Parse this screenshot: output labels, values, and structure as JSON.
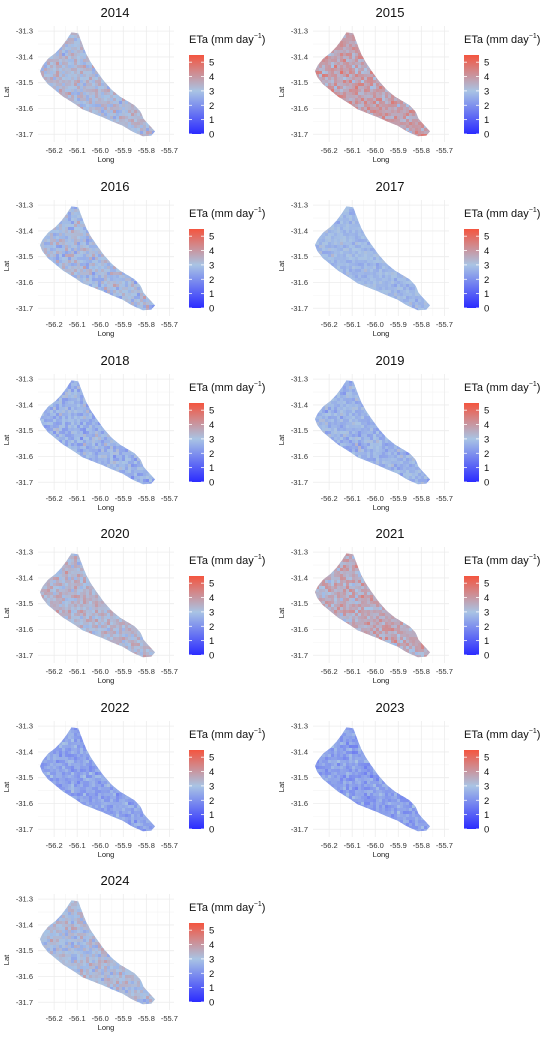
{
  "figure": {
    "legend_title": "ETa",
    "legend_units": "(mm day",
    "legend_units_sup": "−1",
    "legend_units_close": ")",
    "colors": {
      "low": "#2b2bff",
      "mid": "#a9c4e4",
      "high": "#f4553f",
      "grid": "#ececec",
      "panel_bg": "#ffffff"
    }
  },
  "chart_data": [
    {
      "type": "heatmap",
      "title": "2014",
      "xlabel": "Long",
      "ylabel": "Lat",
      "x_ticks": [
        "-56.2",
        "-56.1",
        "-56.0",
        "-55.9",
        "-55.8",
        "-55.7"
      ],
      "y_ticks": [
        "-31.3",
        "-31.4",
        "-31.5",
        "-31.6",
        "-31.7"
      ],
      "xlim": [
        -56.27,
        -55.68
      ],
      "ylim": [
        -31.73,
        -31.28
      ],
      "color_scale": {
        "min": 0,
        "max": 5.5,
        "ticks": [
          "0",
          "1",
          "2",
          "3",
          "4",
          "5"
        ]
      },
      "mean_eta": 3.2,
      "spread": 0.9
    },
    {
      "type": "heatmap",
      "title": "2015",
      "xlabel": "Long",
      "ylabel": "Lat",
      "x_ticks": [
        "-56.2",
        "-56.1",
        "-56.0",
        "-55.9",
        "-55.8",
        "-55.7"
      ],
      "y_ticks": [
        "-31.3",
        "-31.4",
        "-31.5",
        "-31.6",
        "-31.7"
      ],
      "xlim": [
        -56.27,
        -55.68
      ],
      "ylim": [
        -31.73,
        -31.28
      ],
      "color_scale": {
        "min": 0,
        "max": 5.5,
        "ticks": [
          "0",
          "1",
          "2",
          "3",
          "4",
          "5"
        ]
      },
      "mean_eta": 3.8,
      "spread": 1.0
    },
    {
      "type": "heatmap",
      "title": "2016",
      "xlabel": "Long",
      "ylabel": "Lat",
      "x_ticks": [
        "-56.2",
        "-56.1",
        "-56.0",
        "-55.9",
        "-55.8",
        "-55.7"
      ],
      "y_ticks": [
        "-31.3",
        "-31.4",
        "-31.5",
        "-31.6",
        "-31.7"
      ],
      "xlim": [
        -56.27,
        -55.68
      ],
      "ylim": [
        -31.73,
        -31.28
      ],
      "color_scale": {
        "min": 0,
        "max": 5.5,
        "ticks": [
          "0",
          "1",
          "2",
          "3",
          "4",
          "5"
        ]
      },
      "mean_eta": 3.0,
      "spread": 1.0
    },
    {
      "type": "heatmap",
      "title": "2017",
      "xlabel": "Long",
      "ylabel": "Lat",
      "x_ticks": [
        "-56.2",
        "-56.1",
        "-56.0",
        "-55.9",
        "-55.8",
        "-55.7"
      ],
      "y_ticks": [
        "-31.3",
        "-31.4",
        "-31.5",
        "-31.6",
        "-31.7"
      ],
      "xlim": [
        -56.27,
        -55.68
      ],
      "ylim": [
        -31.73,
        -31.28
      ],
      "color_scale": {
        "min": 0,
        "max": 5.5,
        "ticks": [
          "0",
          "1",
          "2",
          "3",
          "4",
          "5"
        ]
      },
      "mean_eta": 2.8,
      "spread": 0.5
    },
    {
      "type": "heatmap",
      "title": "2018",
      "xlabel": "Long",
      "ylabel": "Lat",
      "x_ticks": [
        "-56.2",
        "-56.1",
        "-56.0",
        "-55.9",
        "-55.8",
        "-55.7"
      ],
      "y_ticks": [
        "-31.3",
        "-31.4",
        "-31.5",
        "-31.6",
        "-31.7"
      ],
      "xlim": [
        -56.27,
        -55.68
      ],
      "ylim": [
        -31.73,
        -31.28
      ],
      "color_scale": {
        "min": 0,
        "max": 5.5,
        "ticks": [
          "0",
          "1",
          "2",
          "3",
          "4",
          "5"
        ]
      },
      "mean_eta": 2.7,
      "spread": 0.8
    },
    {
      "type": "heatmap",
      "title": "2019",
      "xlabel": "Long",
      "ylabel": "Lat",
      "x_ticks": [
        "-56.2",
        "-56.1",
        "-56.0",
        "-55.9",
        "-55.8",
        "-55.7"
      ],
      "y_ticks": [
        "-31.3",
        "-31.4",
        "-31.5",
        "-31.6",
        "-31.7"
      ],
      "xlim": [
        -56.27,
        -55.68
      ],
      "ylim": [
        -31.73,
        -31.28
      ],
      "color_scale": {
        "min": 0,
        "max": 5.5,
        "ticks": [
          "0",
          "1",
          "2",
          "3",
          "4",
          "5"
        ]
      },
      "mean_eta": 2.7,
      "spread": 0.7
    },
    {
      "type": "heatmap",
      "title": "2020",
      "xlabel": "Long",
      "ylabel": "Lat",
      "x_ticks": [
        "-56.2",
        "-56.1",
        "-56.0",
        "-55.9",
        "-55.8",
        "-55.7"
      ],
      "y_ticks": [
        "-31.3",
        "-31.4",
        "-31.5",
        "-31.6",
        "-31.7"
      ],
      "xlim": [
        -56.27,
        -55.68
      ],
      "ylim": [
        -31.73,
        -31.28
      ],
      "color_scale": {
        "min": 0,
        "max": 5.5,
        "ticks": [
          "0",
          "1",
          "2",
          "3",
          "4",
          "5"
        ]
      },
      "mean_eta": 3.3,
      "spread": 0.9
    },
    {
      "type": "heatmap",
      "title": "2021",
      "xlabel": "Long",
      "ylabel": "Lat",
      "x_ticks": [
        "-56.2",
        "-56.1",
        "-56.0",
        "-55.9",
        "-55.8",
        "-55.7"
      ],
      "y_ticks": [
        "-31.3",
        "-31.4",
        "-31.5",
        "-31.6",
        "-31.7"
      ],
      "xlim": [
        -56.27,
        -55.68
      ],
      "ylim": [
        -31.73,
        -31.28
      ],
      "color_scale": {
        "min": 0,
        "max": 5.5,
        "ticks": [
          "0",
          "1",
          "2",
          "3",
          "4",
          "5"
        ]
      },
      "mean_eta": 3.6,
      "spread": 1.0
    },
    {
      "type": "heatmap",
      "title": "2022",
      "xlabel": "Long",
      "ylabel": "Lat",
      "x_ticks": [
        "-56.2",
        "-56.1",
        "-56.0",
        "-55.9",
        "-55.8",
        "-55.7"
      ],
      "y_ticks": [
        "-31.3",
        "-31.4",
        "-31.5",
        "-31.6",
        "-31.7"
      ],
      "xlim": [
        -56.27,
        -55.68
      ],
      "ylim": [
        -31.73,
        -31.28
      ],
      "color_scale": {
        "min": 0,
        "max": 5.5,
        "ticks": [
          "0",
          "1",
          "2",
          "3",
          "4",
          "5"
        ]
      },
      "mean_eta": 2.4,
      "spread": 0.7
    },
    {
      "type": "heatmap",
      "title": "2023",
      "xlabel": "Long",
      "ylabel": "Lat",
      "x_ticks": [
        "-56.2",
        "-56.1",
        "-56.0",
        "-55.9",
        "-55.8",
        "-55.7"
      ],
      "y_ticks": [
        "-31.3",
        "-31.4",
        "-31.5",
        "-31.6",
        "-31.7"
      ],
      "xlim": [
        -56.27,
        -55.68
      ],
      "ylim": [
        -31.73,
        -31.28
      ],
      "color_scale": {
        "min": 0,
        "max": 5.5,
        "ticks": [
          "0",
          "1",
          "2",
          "3",
          "4",
          "5"
        ]
      },
      "mean_eta": 2.3,
      "spread": 0.7
    },
    {
      "type": "heatmap",
      "title": "2024",
      "xlabel": "Long",
      "ylabel": "Lat",
      "x_ticks": [
        "-56.2",
        "-56.1",
        "-56.0",
        "-55.9",
        "-55.8",
        "-55.7"
      ],
      "y_ticks": [
        "-31.3",
        "-31.4",
        "-31.5",
        "-31.6",
        "-31.7"
      ],
      "xlim": [
        -56.27,
        -55.68
      ],
      "ylim": [
        -31.73,
        -31.28
      ],
      "color_scale": {
        "min": 0,
        "max": 5.5,
        "ticks": [
          "0",
          "1",
          "2",
          "3",
          "4",
          "5"
        ]
      },
      "mean_eta": 3.1,
      "spread": 0.9
    }
  ]
}
